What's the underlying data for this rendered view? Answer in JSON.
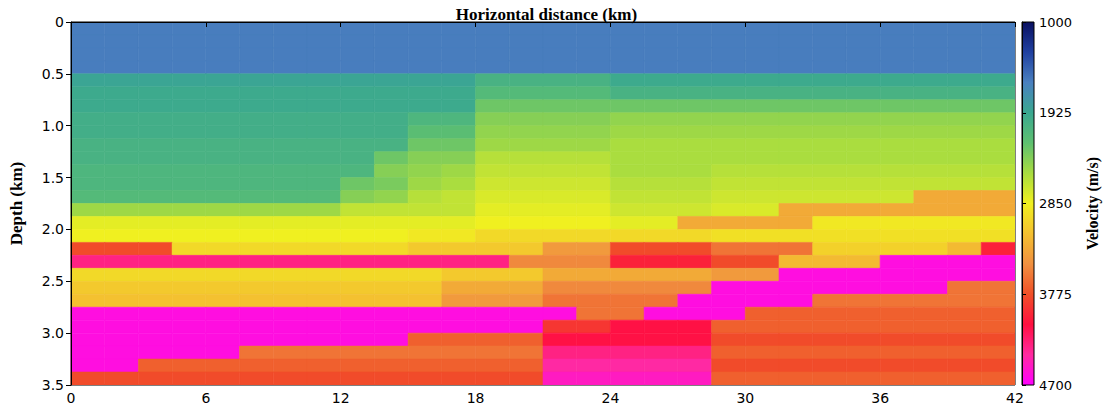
{
  "chart_data": {
    "type": "heatmap",
    "x_label": "Horizontal distance (km)",
    "y_label": "Depth (km)",
    "xlim": [
      0,
      42
    ],
    "xticks": [
      0,
      6,
      12,
      18,
      24,
      30,
      36,
      42
    ],
    "ylim": [
      3.5,
      0
    ],
    "yticks": [
      0,
      0.5,
      {
        "value": 1,
        "label": "1.0"
      },
      1.5,
      {
        "value": 2,
        "label": "2.0"
      },
      2.5,
      {
        "value": 3,
        "label": "3.0"
      },
      3.5
    ],
    "colorbar": {
      "label": "Velocity (m/s)",
      "range": [
        4700,
        1000
      ],
      "ticks": [
        1000,
        1925,
        2850,
        3775,
        4700
      ]
    },
    "x_bins": [
      0,
      1.5,
      3,
      4.5,
      6,
      7.5,
      9,
      10.5,
      12,
      13.5,
      15,
      16.5,
      18,
      19.5,
      21,
      22.5,
      24,
      25.5,
      27,
      28.5,
      30,
      31.5,
      33,
      34.5,
      36,
      37.5,
      39,
      40.5,
      42
    ],
    "y_bins": [
      0,
      0.125,
      0.25,
      0.375,
      0.5,
      0.625,
      0.75,
      0.875,
      1,
      1.125,
      1.25,
      1.375,
      1.5,
      1.625,
      1.75,
      1.875,
      2,
      2.125,
      2.25,
      2.375,
      2.5,
      2.625,
      2.75,
      2.875,
      3,
      3.125,
      3.25,
      3.375,
      3.5
    ],
    "values": [
      [
        1600,
        1600,
        1600,
        1600,
        1600,
        1600,
        1600,
        1600,
        1600,
        1600,
        1600,
        1600,
        1600,
        1600,
        1600,
        1600,
        1600,
        1600,
        1600,
        1600,
        1600,
        1600,
        1600,
        1600,
        1600,
        1600,
        1600,
        1600
      ],
      [
        1600,
        1600,
        1600,
        1600,
        1600,
        1600,
        1600,
        1600,
        1600,
        1600,
        1600,
        1600,
        1600,
        1600,
        1600,
        1600,
        1600,
        1600,
        1600,
        1600,
        1600,
        1600,
        1600,
        1600,
        1600,
        1600,
        1600,
        1600
      ],
      [
        1600,
        1600,
        1600,
        1600,
        1600,
        1600,
        1600,
        1600,
        1600,
        1600,
        1600,
        1600,
        1600,
        1600,
        1600,
        1600,
        1600,
        1600,
        1600,
        1600,
        1600,
        1600,
        1600,
        1600,
        1600,
        1600,
        1600,
        1600
      ],
      [
        1600,
        1600,
        1600,
        1600,
        1600,
        1600,
        1600,
        1600,
        1600,
        1600,
        1600,
        1600,
        1600,
        1600,
        1600,
        1600,
        1600,
        1600,
        1600,
        1600,
        1600,
        1600,
        1600,
        1600,
        1600,
        1600,
        1600,
        1600
      ],
      [
        1900,
        1900,
        1900,
        1900,
        1900,
        1900,
        1900,
        1900,
        1900,
        1900,
        1900,
        1900,
        2050,
        2050,
        2050,
        2050,
        1950,
        1950,
        1950,
        1950,
        1950,
        1950,
        1950,
        1950,
        1950,
        1950,
        1950,
        1950
      ],
      [
        1950,
        1950,
        1950,
        1950,
        1950,
        1950,
        1950,
        1950,
        1950,
        1950,
        1950,
        1950,
        2150,
        2150,
        2150,
        2150,
        2050,
        2050,
        2050,
        2050,
        2050,
        2050,
        2050,
        2050,
        2050,
        2050,
        2050,
        2050
      ],
      [
        1950,
        1950,
        1950,
        1950,
        1950,
        1950,
        1950,
        1950,
        1950,
        1950,
        1950,
        1950,
        2300,
        2300,
        2300,
        2300,
        2300,
        2300,
        2300,
        2300,
        2300,
        2300,
        2300,
        2300,
        2300,
        2300,
        2300,
        2300
      ],
      [
        2000,
        2000,
        2000,
        2000,
        2000,
        2000,
        2000,
        2000,
        2000,
        2000,
        2100,
        2100,
        2400,
        2400,
        2400,
        2400,
        2450,
        2450,
        2450,
        2450,
        2450,
        2450,
        2450,
        2450,
        2450,
        2450,
        2450,
        2450
      ],
      [
        2000,
        2000,
        2000,
        2000,
        2000,
        2000,
        2000,
        2000,
        2000,
        2000,
        2200,
        2200,
        2450,
        2450,
        2450,
        2450,
        2500,
        2500,
        2500,
        2500,
        2500,
        2500,
        2500,
        2500,
        2500,
        2500,
        2500,
        2500
      ],
      [
        2050,
        2050,
        2050,
        2050,
        2050,
        2050,
        2050,
        2050,
        2050,
        2050,
        2300,
        2300,
        2500,
        2500,
        2500,
        2500,
        2550,
        2550,
        2550,
        2550,
        2550,
        2550,
        2550,
        2550,
        2550,
        2550,
        2550,
        2550
      ],
      [
        2050,
        2050,
        2050,
        2050,
        2050,
        2050,
        2050,
        2050,
        2050,
        2300,
        2400,
        2400,
        2600,
        2600,
        2600,
        2600,
        2550,
        2550,
        2550,
        2550,
        2550,
        2550,
        2550,
        2550,
        2550,
        2550,
        2550,
        2550
      ],
      [
        2100,
        2100,
        2100,
        2100,
        2100,
        2100,
        2100,
        2100,
        2100,
        2400,
        2450,
        2500,
        2650,
        2650,
        2650,
        2650,
        2550,
        2550,
        2550,
        2600,
        2600,
        2600,
        2600,
        2600,
        2600,
        2600,
        2600,
        2600
      ],
      [
        2100,
        2100,
        2100,
        2100,
        2100,
        2100,
        2100,
        2100,
        2300,
        2350,
        2500,
        2550,
        2700,
        2700,
        2700,
        2700,
        2600,
        2600,
        2600,
        2650,
        2650,
        2650,
        2650,
        2650,
        2650,
        2650,
        2650,
        2650
      ],
      [
        2150,
        2150,
        2150,
        2150,
        2150,
        2150,
        2150,
        2150,
        2400,
        2450,
        2600,
        2650,
        2750,
        2750,
        2750,
        2750,
        2650,
        2650,
        2650,
        2700,
        2700,
        2700,
        2700,
        2700,
        2700,
        3300,
        3300,
        3300
      ],
      [
        2500,
        2500,
        2500,
        2500,
        2500,
        2500,
        2500,
        2500,
        2650,
        2650,
        2650,
        2650,
        2800,
        2800,
        2800,
        2800,
        2700,
        2700,
        2700,
        2750,
        2750,
        3300,
        3300,
        3300,
        3300,
        3300,
        3300,
        3300
      ],
      [
        2800,
        2800,
        2800,
        2800,
        2800,
        2800,
        2800,
        2800,
        2800,
        2800,
        2800,
        2800,
        2850,
        2850,
        2850,
        2850,
        2800,
        2800,
        3300,
        3300,
        3300,
        3300,
        2900,
        2900,
        2900,
        2900,
        2900,
        2900
      ],
      [
        2850,
        2850,
        2850,
        2850,
        2850,
        2850,
        2850,
        2850,
        2850,
        2850,
        2900,
        2900,
        3000,
        3000,
        3000,
        3000,
        3000,
        3000,
        3000,
        2950,
        2950,
        2950,
        2950,
        2950,
        2950,
        2950,
        2950,
        2950
      ],
      [
        3800,
        3800,
        3800,
        3000,
        3000,
        3000,
        3000,
        3000,
        3000,
        3000,
        3100,
        3100,
        3100,
        3100,
        3400,
        3400,
        3800,
        3800,
        3800,
        3600,
        3600,
        3600,
        3050,
        3050,
        3050,
        3050,
        3200,
        4000
      ],
      [
        4300,
        4300,
        4300,
        4300,
        4300,
        4300,
        4300,
        4300,
        4300,
        4300,
        4300,
        4300,
        4300,
        3500,
        3500,
        3500,
        4000,
        4000,
        4000,
        3800,
        3800,
        3200,
        3200,
        3200,
        4600,
        4600,
        4600,
        4600
      ],
      [
        3000,
        3000,
        3000,
        3000,
        3000,
        3000,
        3000,
        3000,
        3000,
        3000,
        3000,
        3100,
        3100,
        3100,
        3300,
        3300,
        3300,
        3300,
        3300,
        3400,
        3400,
        4600,
        4600,
        4600,
        4600,
        4600,
        4600,
        4600
      ],
      [
        3100,
        3100,
        3100,
        3100,
        3100,
        3100,
        3100,
        3100,
        3100,
        3100,
        3100,
        3300,
        3300,
        3300,
        3500,
        3500,
        3500,
        3500,
        3500,
        4600,
        4600,
        4600,
        4600,
        4600,
        4600,
        4600,
        3600,
        3600
      ],
      [
        3150,
        3150,
        3150,
        3150,
        3150,
        3150,
        3150,
        3150,
        3150,
        3150,
        3150,
        3400,
        3400,
        3400,
        3600,
        3600,
        3600,
        3600,
        4600,
        4600,
        4600,
        4600,
        3600,
        3600,
        3600,
        3600,
        3600,
        3600
      ],
      [
        4600,
        4600,
        4600,
        4600,
        4600,
        4600,
        4600,
        4600,
        4600,
        4600,
        4600,
        4600,
        4600,
        4600,
        4600,
        3600,
        3600,
        4600,
        4600,
        4600,
        3700,
        3700,
        3700,
        3700,
        3700,
        3700,
        3700,
        3700
      ],
      [
        4600,
        4600,
        4600,
        4600,
        4600,
        4600,
        4600,
        4600,
        4600,
        4600,
        4600,
        4600,
        4600,
        4600,
        3900,
        3900,
        4100,
        4100,
        4100,
        3700,
        3700,
        3700,
        3700,
        3700,
        3700,
        3700,
        3700,
        3700
      ],
      [
        4600,
        4600,
        4600,
        4600,
        4600,
        4600,
        4600,
        4600,
        4600,
        4600,
        3700,
        3700,
        3700,
        3700,
        4100,
        4100,
        4100,
        4100,
        4100,
        3800,
        3800,
        3800,
        3800,
        3800,
        3800,
        3800,
        3800,
        3800
      ],
      [
        4600,
        4600,
        4600,
        4600,
        4600,
        3600,
        3600,
        3600,
        3600,
        3600,
        3600,
        3600,
        3600,
        3600,
        4300,
        4300,
        4300,
        4300,
        4300,
        3700,
        3700,
        3700,
        3700,
        3700,
        3700,
        3700,
        3700,
        3700
      ],
      [
        4600,
        4600,
        3700,
        3700,
        3700,
        3700,
        3700,
        3700,
        3700,
        3700,
        3700,
        3700,
        3700,
        3700,
        4400,
        4400,
        4400,
        4400,
        4400,
        3800,
        3800,
        3800,
        3800,
        3800,
        3800,
        3800,
        3800,
        3800
      ],
      [
        3800,
        3800,
        3800,
        3800,
        3800,
        3800,
        3800,
        3800,
        3800,
        3800,
        3800,
        3800,
        3800,
        3800,
        4500,
        4500,
        4500,
        4500,
        4500,
        3700,
        3700,
        3700,
        3700,
        3700,
        3700,
        3700,
        3700,
        3700
      ]
    ]
  }
}
